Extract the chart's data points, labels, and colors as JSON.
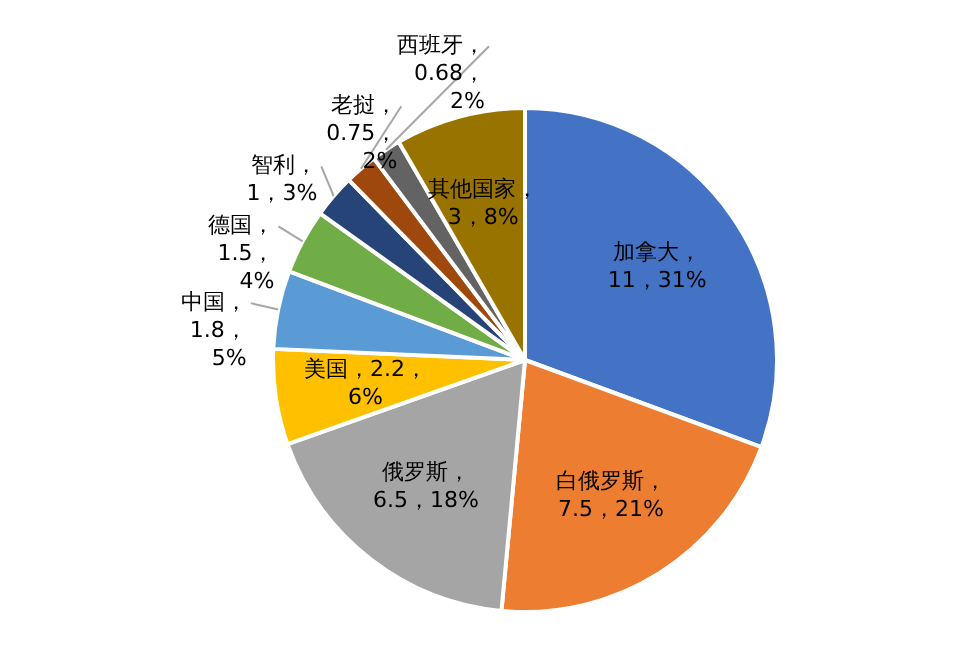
{
  "chart_data": {
    "type": "pie",
    "categories": [
      "加拿大",
      "白俄罗斯",
      "俄罗斯",
      "美国",
      "中国",
      "德国",
      "智利",
      "老挝",
      "西班牙",
      "其他国家"
    ],
    "values": [
      11,
      7.5,
      6.5,
      2.2,
      1.8,
      1.5,
      1,
      0.75,
      0.68,
      3
    ],
    "colors": [
      "#4472c4",
      "#ed7d31",
      "#a5a5a5",
      "#ffc000",
      "#5b9bd5",
      "#70ad47",
      "#264478",
      "#9e480e",
      "#636363",
      "#997300"
    ],
    "value_labels": [
      "，11，31%",
      "，7.5，21%",
      "，6.5，18%",
      "，2.2，6%",
      "，1.8，5%",
      "，1.5，4%",
      "，1，3%",
      "，0.75，2%",
      "，0.68，2%",
      "，3，8%"
    ],
    "legend": false
  }
}
